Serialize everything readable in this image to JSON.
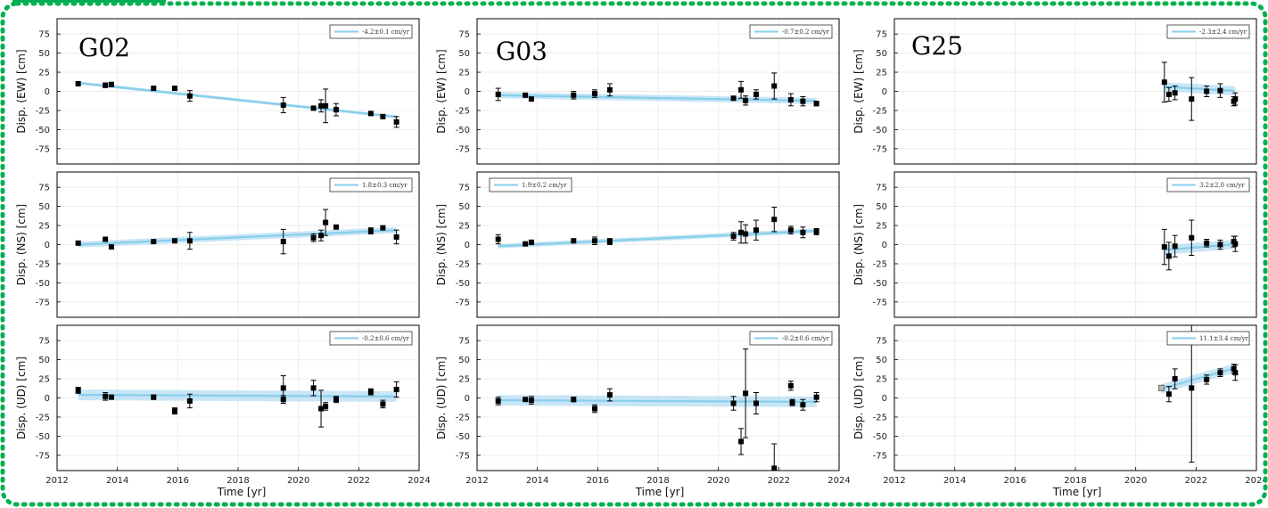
{
  "colors": {
    "fit_line": "#87ceeb",
    "fit_band": "#b5def3",
    "marker": "#000000",
    "border": "#00b050"
  },
  "chart_data": [
    {
      "type": "scatter",
      "station": "G02",
      "component": "EW",
      "ylabel": "Disp. (EW) [cm]",
      "legend": "-4.2±0.1 cm/yr",
      "rate": -4.2,
      "rate_err": 0.1,
      "intercept": 11,
      "band": 2,
      "x": [
        2012.7,
        2013.6,
        2013.8,
        2015.2,
        2015.9,
        2016.4,
        2019.5,
        2020.5,
        2020.75,
        2020.9,
        2021.25,
        2022.4,
        2022.8,
        2023.25
      ],
      "y": [
        10,
        8,
        9,
        4,
        4,
        -6,
        -18,
        -22,
        -19,
        -19,
        -24,
        -29,
        -33,
        -40
      ],
      "yerr": [
        0,
        3,
        0,
        0,
        0,
        7,
        10,
        0,
        8,
        22,
        8,
        0,
        0,
        7
      ]
    },
    {
      "type": "scatter",
      "station": "G02",
      "component": "NS",
      "ylabel": "Disp. (NS) [cm]",
      "legend": "1.8±0.3 cm/yr",
      "rate": 1.8,
      "rate_err": 0.3,
      "intercept": 0,
      "band": 4,
      "x": [
        2012.7,
        2013.6,
        2013.8,
        2015.2,
        2015.9,
        2016.4,
        2019.5,
        2020.5,
        2020.75,
        2020.9,
        2021.25,
        2022.4,
        2022.8,
        2023.25
      ],
      "y": [
        2,
        7,
        -3,
        4,
        5,
        5,
        4,
        9,
        12,
        29,
        23,
        18,
        22,
        10
      ],
      "yerr": [
        0,
        0,
        0,
        0,
        0,
        11,
        16,
        5,
        7,
        17,
        0,
        4,
        0,
        9
      ]
    },
    {
      "type": "scatter",
      "station": "G02",
      "component": "UD",
      "ylabel": "Disp. (UD) [cm]",
      "legend": "-0.2±0.6 cm/yr",
      "rate": -0.2,
      "rate_err": 0.6,
      "intercept": 4,
      "band": 7,
      "x": [
        2012.7,
        2013.6,
        2013.8,
        2015.2,
        2015.9,
        2016.4,
        2019.5,
        2019.5,
        2020.5,
        2020.75,
        2020.9,
        2021.25,
        2022.4,
        2022.8,
        2023.25
      ],
      "y": [
        10,
        2,
        1,
        1,
        -17,
        -4,
        13,
        -2,
        13,
        -14,
        -11,
        -2,
        8,
        -8,
        11
      ],
      "yerr": [
        4,
        5,
        0,
        3,
        4,
        9,
        16,
        5,
        10,
        24,
        5,
        4,
        4,
        5,
        10
      ]
    },
    {
      "type": "scatter",
      "station": "G03",
      "component": "EW",
      "ylabel": "Disp. (EW) [cm]",
      "legend": "-0.7±0.2 cm/yr",
      "rate": -0.7,
      "rate_err": 0.2,
      "intercept": -5,
      "band": 4,
      "x": [
        2012.7,
        2013.6,
        2013.8,
        2015.2,
        2015.9,
        2016.4,
        2020.5,
        2020.75,
        2020.9,
        2021.25,
        2021.85,
        2022.4,
        2022.8,
        2023.25
      ],
      "y": [
        -4,
        -5,
        -10,
        -5,
        -3,
        2,
        -9,
        2,
        -12,
        -4,
        7,
        -11,
        -13,
        -16
      ],
      "yerr": [
        8,
        0,
        0,
        5,
        5,
        8,
        0,
        11,
        6,
        6,
        17,
        8,
        6,
        3
      ]
    },
    {
      "type": "scatter",
      "station": "G03",
      "component": "NS",
      "ylabel": "Disp. (NS) [cm]",
      "legend": "1.9±0.2 cm/yr",
      "rate": 1.9,
      "rate_err": 0.2,
      "intercept": -2,
      "band": 3,
      "x": [
        2012.7,
        2013.6,
        2013.8,
        2015.2,
        2015.9,
        2016.4,
        2020.5,
        2020.75,
        2020.9,
        2021.25,
        2021.85,
        2022.4,
        2022.8,
        2023.25
      ],
      "y": [
        7,
        1,
        3,
        5,
        5,
        4,
        11,
        16,
        14,
        19,
        33,
        19,
        16,
        17
      ],
      "yerr": [
        6,
        0,
        3,
        0,
        5,
        4,
        5,
        14,
        12,
        13,
        16,
        5,
        7,
        4
      ]
    },
    {
      "type": "scatter",
      "station": "G03",
      "component": "UD",
      "ylabel": "Disp. (UD) [cm]",
      "legend": "-0.2±0.6 cm/yr",
      "rate": -0.2,
      "rate_err": 0.6,
      "intercept": -3,
      "band": 7,
      "x": [
        2012.7,
        2013.6,
        2013.8,
        2015.2,
        2015.9,
        2016.4,
        2020.5,
        2020.75,
        2020.9,
        2021.25,
        2021.85,
        2022.4,
        2022.45,
        2022.8,
        2023.25
      ],
      "y": [
        -4,
        -2,
        -3,
        -2,
        -14,
        4,
        -7,
        -57,
        6,
        -7,
        -92,
        16,
        -6,
        -9,
        1
      ],
      "yerr": [
        5,
        0,
        5,
        3,
        5,
        8,
        9,
        17,
        58,
        14,
        32,
        6,
        4,
        7,
        6
      ]
    },
    {
      "type": "scatter",
      "station": "G25",
      "component": "EW",
      "ylabel": "Disp. (EW) [cm]",
      "legend": "-2.3±2.4 cm/yr",
      "rate": -2.3,
      "rate_err": 2.4,
      "intercept": 6,
      "band": 6,
      "x": [
        2020.95,
        2021.1,
        2021.3,
        2021.85,
        2022.35,
        2022.8,
        2023.25,
        2023.3
      ],
      "y": [
        12,
        -4,
        -2,
        -10,
        0,
        1,
        -13,
        -10
      ],
      "yerr": [
        26,
        9,
        9,
        28,
        7,
        9,
        6,
        8
      ]
    },
    {
      "type": "scatter",
      "station": "G25",
      "component": "NS",
      "ylabel": "Disp. (NS) [cm]",
      "legend": "3.2±2.0 cm/yr",
      "rate": 3.2,
      "rate_err": 2.0,
      "intercept": -7,
      "band": 6,
      "x": [
        2020.95,
        2021.1,
        2021.3,
        2021.85,
        2022.35,
        2022.8,
        2023.25,
        2023.3
      ],
      "y": [
        -3,
        -15,
        -2,
        9,
        2,
        0,
        4,
        1
      ],
      "yerr": [
        23,
        18,
        14,
        23,
        5,
        6,
        7,
        10
      ]
    },
    {
      "type": "scatter",
      "station": "G25",
      "component": "UD",
      "ylabel": "Disp. (UD) [cm]",
      "legend": "11.1±3.4 cm/yr",
      "rate": 11.1,
      "rate_err": 3.4,
      "intercept": 12,
      "band": 6,
      "x": [
        2020.85,
        2021.1,
        2021.3,
        2021.85,
        2022.35,
        2022.8,
        2023.25,
        2023.3
      ],
      "y": [
        13,
        5,
        25,
        13,
        24,
        33,
        38,
        33
      ],
      "yerr": [
        0,
        10,
        13,
        97,
        6,
        5,
        6,
        10
      ],
      "open_marker_index": 0
    }
  ],
  "stations": [
    "G02",
    "G03",
    "G25"
  ],
  "xlabel": "Time [yr]",
  "xlim": [
    2012,
    2024
  ],
  "ylim": [
    -95,
    95
  ],
  "xticks": [
    2012,
    2014,
    2016,
    2018,
    2020,
    2022,
    2024
  ],
  "yticks": [
    75,
    50,
    25,
    0,
    -25,
    -50,
    -75
  ],
  "grid": true,
  "legend_position": "top-right"
}
